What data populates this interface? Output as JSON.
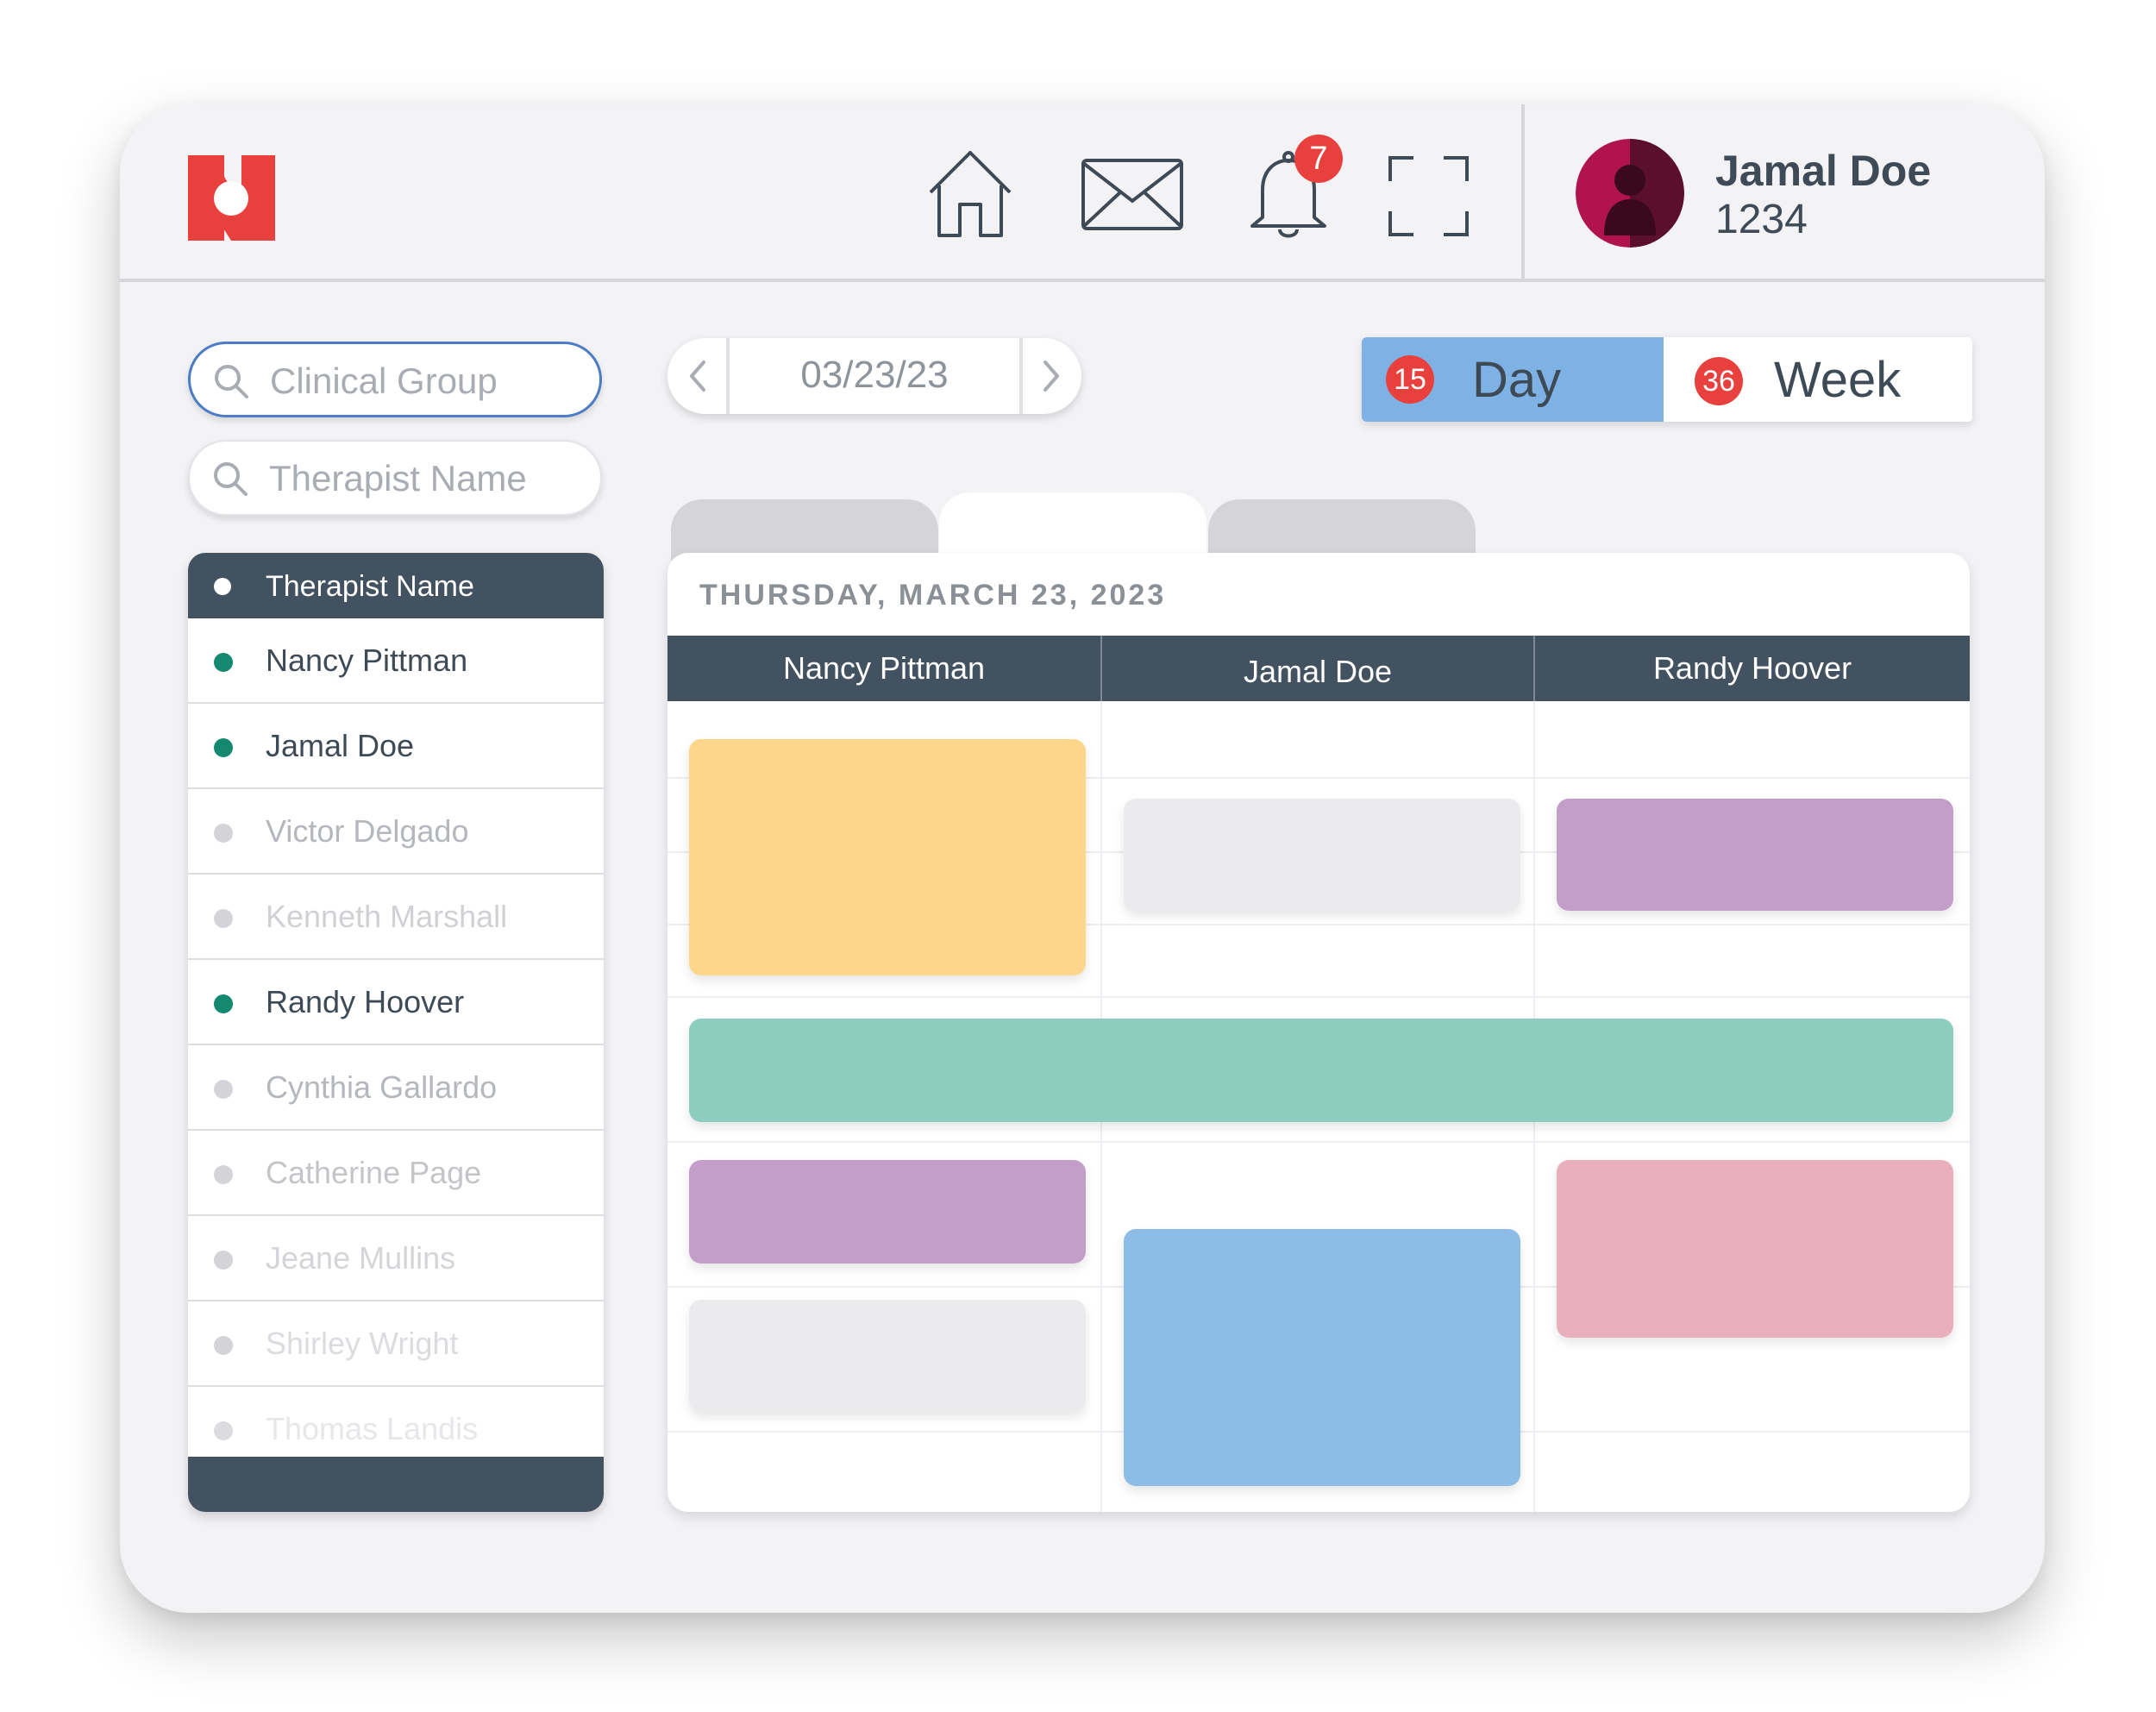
{
  "header": {
    "notification_count": "7",
    "user": {
      "name": "Jamal Doe",
      "id": "1234"
    },
    "icons": [
      "logo-icon",
      "home-icon",
      "mail-icon",
      "bell-icon",
      "fullscreen-icon",
      "avatar"
    ]
  },
  "sidebar": {
    "search_group": {
      "placeholder": "Clinical Group"
    },
    "search_therapist": {
      "placeholder": "Therapist Name"
    },
    "list_header": "Therapist Name",
    "therapists": [
      {
        "name": "Nancy Pittman",
        "status": "active"
      },
      {
        "name": "Jamal Doe",
        "status": "active"
      },
      {
        "name": "Victor Delgado",
        "status": "inactive"
      },
      {
        "name": "Kenneth Marshall",
        "status": "inactive"
      },
      {
        "name": "Randy Hoover",
        "status": "active"
      },
      {
        "name": "Cynthia Gallardo",
        "status": "inactive"
      },
      {
        "name": "Catherine Page",
        "status": "inactive"
      },
      {
        "name": "Jeane Mullins",
        "status": "inactive"
      },
      {
        "name": "Shirley Wright",
        "status": "inactive"
      },
      {
        "name": "Thomas Landis",
        "status": "inactive"
      }
    ]
  },
  "date_nav": {
    "date": "03/23/23"
  },
  "view_toggle": {
    "day": {
      "label": "Day",
      "count": "15"
    },
    "week": {
      "label": "Week",
      "count": "36"
    }
  },
  "calendar": {
    "date_heading": "THURSDAY, MARCH 23, 2023",
    "columns": [
      "Nancy Pittman",
      "Jamal Doe",
      "Randy Hoover"
    ]
  },
  "colors": {
    "accent_blue": "#7fb2e4",
    "header_dark": "#435260",
    "brand_red": "#e8403c",
    "status_active": "#14896f",
    "status_inactive": "#d4d4d8",
    "event_yellow": "#fdd58b",
    "event_gray": "#ebebed",
    "event_purple": "#c39ec8",
    "event_teal": "#8dcdbf",
    "event_pink": "#e9afbb",
    "event_blue": "#8dbce6"
  }
}
